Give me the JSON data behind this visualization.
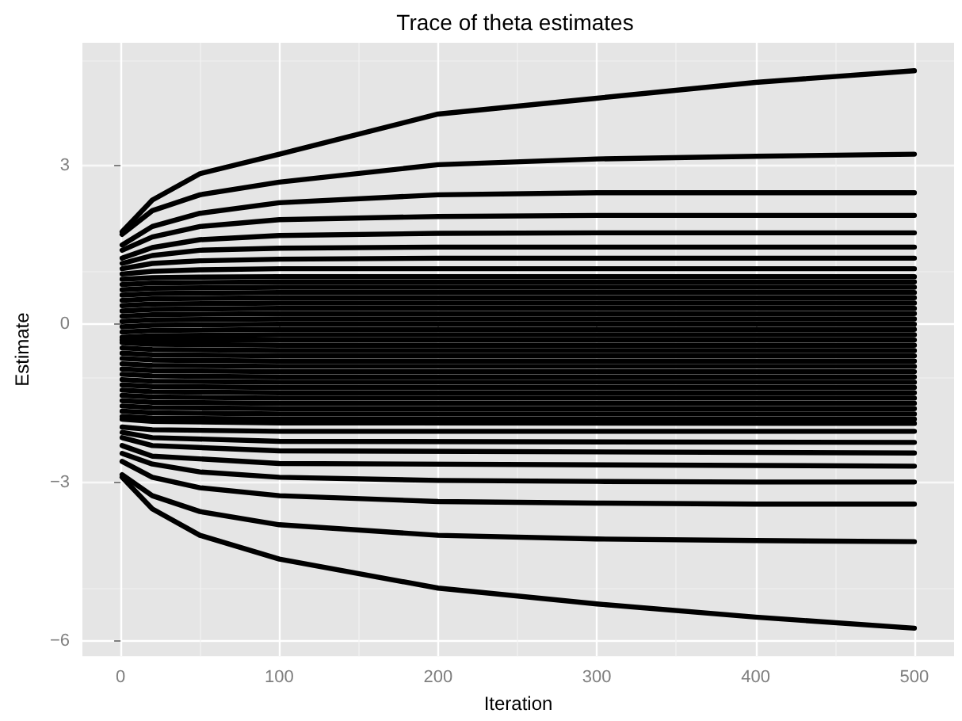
{
  "chart_data": {
    "type": "line",
    "title": "Trace of theta estimates",
    "xlabel": "Iteration",
    "ylabel": "Estimate",
    "x": [
      1,
      20,
      50,
      100,
      200,
      300,
      400,
      500
    ],
    "xlim": [
      -24,
      525
    ],
    "xticks": [
      0,
      100,
      200,
      300,
      400,
      500
    ],
    "ylim": [
      -6.29,
      5.33
    ],
    "yticks": [
      -6,
      -3,
      0,
      3
    ],
    "grid": true,
    "marker": "none",
    "line_style": "solid",
    "series": [
      {
        "color": "#000000",
        "values": [
          1.75,
          2.35,
          2.85,
          3.22,
          3.98,
          4.28,
          4.58,
          4.8
        ]
      },
      {
        "color": "#000000",
        "values": [
          1.7,
          2.15,
          2.45,
          2.69,
          3.02,
          3.13,
          3.18,
          3.22
        ]
      },
      {
        "color": "#000000",
        "values": [
          1.5,
          1.85,
          2.1,
          2.3,
          2.45,
          2.49,
          2.49,
          2.49
        ]
      },
      {
        "color": "#000000",
        "values": [
          1.4,
          1.65,
          1.85,
          1.98,
          2.04,
          2.06,
          2.06,
          2.06
        ]
      },
      {
        "color": "#000000",
        "values": [
          1.25,
          1.45,
          1.6,
          1.68,
          1.72,
          1.73,
          1.73,
          1.73
        ]
      },
      {
        "color": "#000000",
        "values": [
          1.15,
          1.3,
          1.4,
          1.44,
          1.46,
          1.46,
          1.46,
          1.46
        ]
      },
      {
        "color": "#000000",
        "values": [
          1.05,
          1.15,
          1.2,
          1.23,
          1.25,
          1.25,
          1.25,
          1.25
        ]
      },
      {
        "color": "#000000",
        "values": [
          0.95,
          1.0,
          1.03,
          1.05,
          1.05,
          1.05,
          1.05,
          1.05
        ]
      },
      {
        "color": "#000000",
        "values": [
          0.85,
          0.88,
          0.89,
          0.9,
          0.9,
          0.9,
          0.9,
          0.9
        ]
      },
      {
        "color": "#000000",
        "x": [
          1,
          20,
          100,
          500
        ],
        "values": [
          0.75,
          0.78,
          0.8,
          0.8
        ]
      },
      {
        "color": "#000000",
        "x": [
          1,
          20,
          100,
          500
        ],
        "values": [
          0.65,
          0.68,
          0.7,
          0.7
        ]
      },
      {
        "color": "#000000",
        "x": [
          1,
          20,
          100,
          500
        ],
        "values": [
          0.55,
          0.58,
          0.6,
          0.6
        ]
      },
      {
        "color": "#000000",
        "x": [
          1,
          20,
          100,
          500
        ],
        "values": [
          0.45,
          0.48,
          0.5,
          0.5
        ]
      },
      {
        "color": "#000000",
        "x": [
          1,
          20,
          100,
          500
        ],
        "values": [
          0.35,
          0.38,
          0.4,
          0.4
        ]
      },
      {
        "color": "#000000",
        "x": [
          1,
          20,
          100,
          500
        ],
        "values": [
          0.25,
          0.28,
          0.3,
          0.3
        ]
      },
      {
        "color": "#000000",
        "x": [
          1,
          20,
          100,
          500
        ],
        "values": [
          0.15,
          0.18,
          0.2,
          0.2
        ]
      },
      {
        "color": "#000000",
        "x": [
          1,
          20,
          100,
          500
        ],
        "values": [
          0.05,
          0.08,
          0.1,
          0.1
        ]
      },
      {
        "color": "#000000",
        "x": [
          1,
          20,
          100,
          500
        ],
        "values": [
          -0.05,
          -0.02,
          0,
          0
        ]
      },
      {
        "color": "#000000",
        "x": [
          1,
          20,
          100,
          500
        ],
        "values": [
          -0.15,
          -0.12,
          -0.1,
          -0.1
        ]
      },
      {
        "color": "#000000",
        "x": [
          1,
          20,
          100,
          500
        ],
        "values": [
          -0.25,
          -0.22,
          -0.2,
          -0.2
        ]
      },
      {
        "color": "#000000",
        "x": [
          1,
          20,
          100,
          500
        ],
        "values": [
          -0.3,
          -0.3,
          -0.3,
          -0.3
        ]
      },
      {
        "color": "#000000",
        "x": [
          1,
          20,
          100,
          500
        ],
        "values": [
          -0.35,
          -0.38,
          -0.4,
          -0.4
        ]
      },
      {
        "color": "#000000",
        "x": [
          1,
          20,
          100,
          500
        ],
        "values": [
          -0.45,
          -0.48,
          -0.5,
          -0.5
        ]
      },
      {
        "color": "#000000",
        "x": [
          1,
          20,
          100,
          500
        ],
        "values": [
          -0.55,
          -0.58,
          -0.6,
          -0.6
        ]
      },
      {
        "color": "#000000",
        "x": [
          1,
          20,
          100,
          500
        ],
        "values": [
          -0.65,
          -0.68,
          -0.7,
          -0.7
        ]
      },
      {
        "color": "#000000",
        "x": [
          1,
          20,
          100,
          500
        ],
        "values": [
          -0.75,
          -0.78,
          -0.8,
          -0.8
        ]
      },
      {
        "color": "#000000",
        "x": [
          1,
          20,
          100,
          500
        ],
        "values": [
          -0.85,
          -0.88,
          -0.9,
          -0.9
        ]
      },
      {
        "color": "#000000",
        "x": [
          1,
          20,
          100,
          500
        ],
        "values": [
          -0.95,
          -0.98,
          -1.0,
          -1.0
        ]
      },
      {
        "color": "#000000",
        "x": [
          1,
          20,
          100,
          500
        ],
        "values": [
          -1.05,
          -1.08,
          -1.1,
          -1.1
        ]
      },
      {
        "color": "#000000",
        "x": [
          1,
          20,
          100,
          500
        ],
        "values": [
          -1.15,
          -1.18,
          -1.2,
          -1.2
        ]
      },
      {
        "color": "#000000",
        "x": [
          1,
          20,
          100,
          500
        ],
        "values": [
          -1.25,
          -1.28,
          -1.3,
          -1.3
        ]
      },
      {
        "color": "#000000",
        "x": [
          1,
          20,
          100,
          500
        ],
        "values": [
          -1.35,
          -1.38,
          -1.4,
          -1.4
        ]
      },
      {
        "color": "#000000",
        "x": [
          1,
          20,
          100,
          500
        ],
        "values": [
          -1.45,
          -1.48,
          -1.5,
          -1.5
        ]
      },
      {
        "color": "#000000",
        "x": [
          1,
          20,
          100,
          500
        ],
        "values": [
          -1.55,
          -1.58,
          -1.6,
          -1.6
        ]
      },
      {
        "color": "#000000",
        "x": [
          1,
          20,
          100,
          500
        ],
        "values": [
          -1.65,
          -1.68,
          -1.7,
          -1.7
        ]
      },
      {
        "color": "#000000",
        "x": [
          1,
          20,
          100,
          500
        ],
        "values": [
          -1.75,
          -1.78,
          -1.8,
          -1.8
        ]
      },
      {
        "color": "#000000",
        "x": [
          1,
          20,
          100,
          500
        ],
        "values": [
          -1.8,
          -1.84,
          -1.87,
          -1.88
        ]
      },
      {
        "color": "#000000",
        "x": [
          1,
          20,
          100,
          500
        ],
        "values": [
          -1.95,
          -2.0,
          -2.03,
          -2.03
        ]
      },
      {
        "color": "#000000",
        "x": [
          1,
          20,
          100,
          500
        ],
        "values": [
          -2.05,
          -2.15,
          -2.22,
          -2.24
        ]
      },
      {
        "color": "#000000",
        "x": [
          1,
          20,
          100,
          500
        ],
        "values": [
          -2.15,
          -2.3,
          -2.4,
          -2.44
        ]
      },
      {
        "color": "#000000",
        "x": [
          1,
          20,
          100,
          500
        ],
        "values": [
          -2.3,
          -2.5,
          -2.64,
          -2.69
        ]
      },
      {
        "color": "#000000",
        "values": [
          -2.45,
          -2.65,
          -2.8,
          -2.9,
          -2.96,
          -2.98,
          -2.99,
          -2.99
        ]
      },
      {
        "color": "#000000",
        "values": [
          -2.6,
          -2.9,
          -3.1,
          -3.25,
          -3.36,
          -3.39,
          -3.41,
          -3.41
        ]
      },
      {
        "color": "#000000",
        "values": [
          -2.85,
          -3.25,
          -3.55,
          -3.8,
          -4.0,
          -4.07,
          -4.1,
          -4.12
        ]
      },
      {
        "color": "#000000",
        "values": [
          -2.9,
          -3.5,
          -4.0,
          -4.45,
          -5.0,
          -5.3,
          -5.55,
          -5.76
        ]
      }
    ]
  }
}
